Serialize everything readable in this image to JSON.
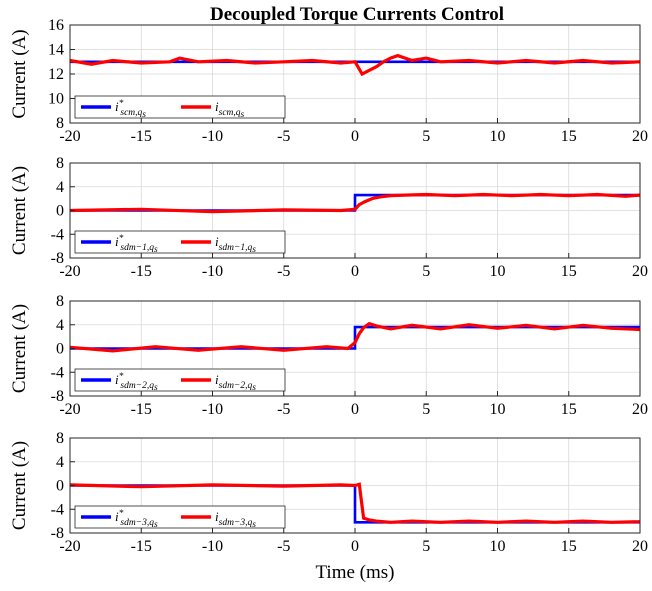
{
  "title": "Decoupled Torque Currents Control",
  "chart_data": [
    {
      "type": "line",
      "ylabel": "Current (A)",
      "xlim": [
        -20,
        20
      ],
      "ylim": [
        8,
        16
      ],
      "xticks": [
        -20,
        -15,
        -10,
        -5,
        0,
        5,
        10,
        15,
        20
      ],
      "yticks": [
        8,
        10,
        12,
        14,
        16
      ],
      "grid": true,
      "legend_position": "bottom-left",
      "series": [
        {
          "name_main": "i",
          "name_sub": "scm,q",
          "name_subsub": "s",
          "ref": true,
          "color": "#0000ff",
          "x": [
            -20,
            20
          ],
          "y": [
            13,
            13
          ],
          "step": false
        },
        {
          "name_main": "i",
          "name_sub": "scm,q",
          "name_subsub": "s",
          "ref": false,
          "color": "#ff0000",
          "x": [
            -20,
            -18.5,
            -17,
            -15,
            -13,
            -12.3,
            -11,
            -9,
            -7,
            -5,
            -3,
            -1,
            0,
            0.2,
            0.5,
            1,
            1.5,
            2,
            2.5,
            3,
            4,
            5,
            6,
            8,
            10,
            12,
            14,
            16,
            18,
            20
          ],
          "y": [
            13.1,
            12.8,
            13.1,
            12.9,
            13.0,
            13.3,
            13.0,
            13.1,
            12.9,
            13.0,
            13.1,
            12.9,
            13.0,
            12.6,
            12.0,
            12.3,
            12.6,
            13.0,
            13.3,
            13.5,
            13.1,
            13.3,
            13.0,
            13.1,
            12.9,
            13.1,
            12.9,
            13.1,
            12.9,
            13.0
          ]
        }
      ]
    },
    {
      "type": "line",
      "ylabel": "Current (A)",
      "xlim": [
        -20,
        20
      ],
      "ylim": [
        -8,
        8
      ],
      "xticks": [
        -20,
        -15,
        -10,
        -5,
        0,
        5,
        10,
        15,
        20
      ],
      "yticks": [
        -8,
        -4,
        0,
        4,
        8
      ],
      "grid": true,
      "legend_position": "bottom-left",
      "series": [
        {
          "name_main": "i",
          "name_sub": "sdm−1,q",
          "name_subsub": "s",
          "ref": true,
          "color": "#0000ff",
          "x": [
            -20,
            0,
            0,
            20
          ],
          "y": [
            0,
            0,
            2.6,
            2.6
          ]
        },
        {
          "name_main": "i",
          "name_sub": "sdm−1,q",
          "name_subsub": "s",
          "ref": false,
          "color": "#ff0000",
          "x": [
            -20,
            -15,
            -10,
            -5,
            -1,
            0,
            0.3,
            0.7,
            1.2,
            1.8,
            2.5,
            3.5,
            5,
            7,
            9,
            11,
            13,
            15,
            17,
            19,
            20
          ],
          "y": [
            0,
            0.2,
            -0.2,
            0.1,
            0,
            0.2,
            1.0,
            1.5,
            2.0,
            2.3,
            2.5,
            2.6,
            2.7,
            2.5,
            2.7,
            2.5,
            2.7,
            2.5,
            2.7,
            2.4,
            2.6
          ]
        }
      ]
    },
    {
      "type": "line",
      "ylabel": "Current (A)",
      "xlim": [
        -20,
        20
      ],
      "ylim": [
        -8,
        8
      ],
      "xticks": [
        -20,
        -15,
        -10,
        -5,
        0,
        5,
        10,
        15,
        20
      ],
      "yticks": [
        -8,
        -4,
        0,
        4,
        8
      ],
      "grid": true,
      "legend_position": "bottom-left",
      "series": [
        {
          "name_main": "i",
          "name_sub": "sdm−2,q",
          "name_subsub": "s",
          "ref": true,
          "color": "#0000ff",
          "x": [
            -20,
            0,
            0,
            20
          ],
          "y": [
            0,
            0,
            3.6,
            3.6
          ]
        },
        {
          "name_main": "i",
          "name_sub": "sdm−2,q",
          "name_subsub": "s",
          "ref": false,
          "color": "#ff0000",
          "x": [
            -20,
            -17,
            -14,
            -11,
            -8,
            -5,
            -2,
            -0.5,
            0,
            0.3,
            0.6,
            1,
            1.5,
            2.5,
            4,
            6,
            8,
            10,
            12,
            14,
            16,
            18,
            20
          ],
          "y": [
            0.2,
            -0.4,
            0.3,
            -0.3,
            0.3,
            -0.3,
            0.3,
            0,
            1.0,
            2.5,
            3.5,
            4.2,
            3.8,
            3.3,
            3.9,
            3.3,
            4.0,
            3.4,
            3.9,
            3.3,
            3.9,
            3.4,
            3.2
          ]
        }
      ]
    },
    {
      "type": "line",
      "ylabel": "Current (A)",
      "xlabel": "Time (ms)",
      "xlim": [
        -20,
        20
      ],
      "ylim": [
        -8,
        8
      ],
      "xticks": [
        -20,
        -15,
        -10,
        -5,
        0,
        5,
        10,
        15,
        20
      ],
      "yticks": [
        -8,
        -4,
        0,
        4,
        8
      ],
      "grid": true,
      "legend_position": "bottom-left",
      "series": [
        {
          "name_main": "i",
          "name_sub": "sdm−3,q",
          "name_subsub": "s",
          "ref": true,
          "color": "#0000ff",
          "x": [
            -20,
            0,
            0,
            20
          ],
          "y": [
            0,
            0,
            -6.2,
            -6.2
          ]
        },
        {
          "name_main": "i",
          "name_sub": "sdm−3,q",
          "name_subsub": "s",
          "ref": false,
          "color": "#ff0000",
          "x": [
            -20,
            -15,
            -10,
            -5,
            -1,
            0,
            0.3,
            0.6,
            1,
            1.5,
            2.5,
            4,
            6,
            8,
            10,
            12,
            14,
            16,
            18,
            20
          ],
          "y": [
            0.1,
            -0.2,
            0.1,
            -0.1,
            0.1,
            0,
            0.2,
            -5.5,
            -5.8,
            -6.0,
            -6.2,
            -6.0,
            -6.2,
            -6.0,
            -6.2,
            -6.0,
            -6.2,
            -6.0,
            -6.2,
            -6.1
          ]
        }
      ]
    }
  ]
}
